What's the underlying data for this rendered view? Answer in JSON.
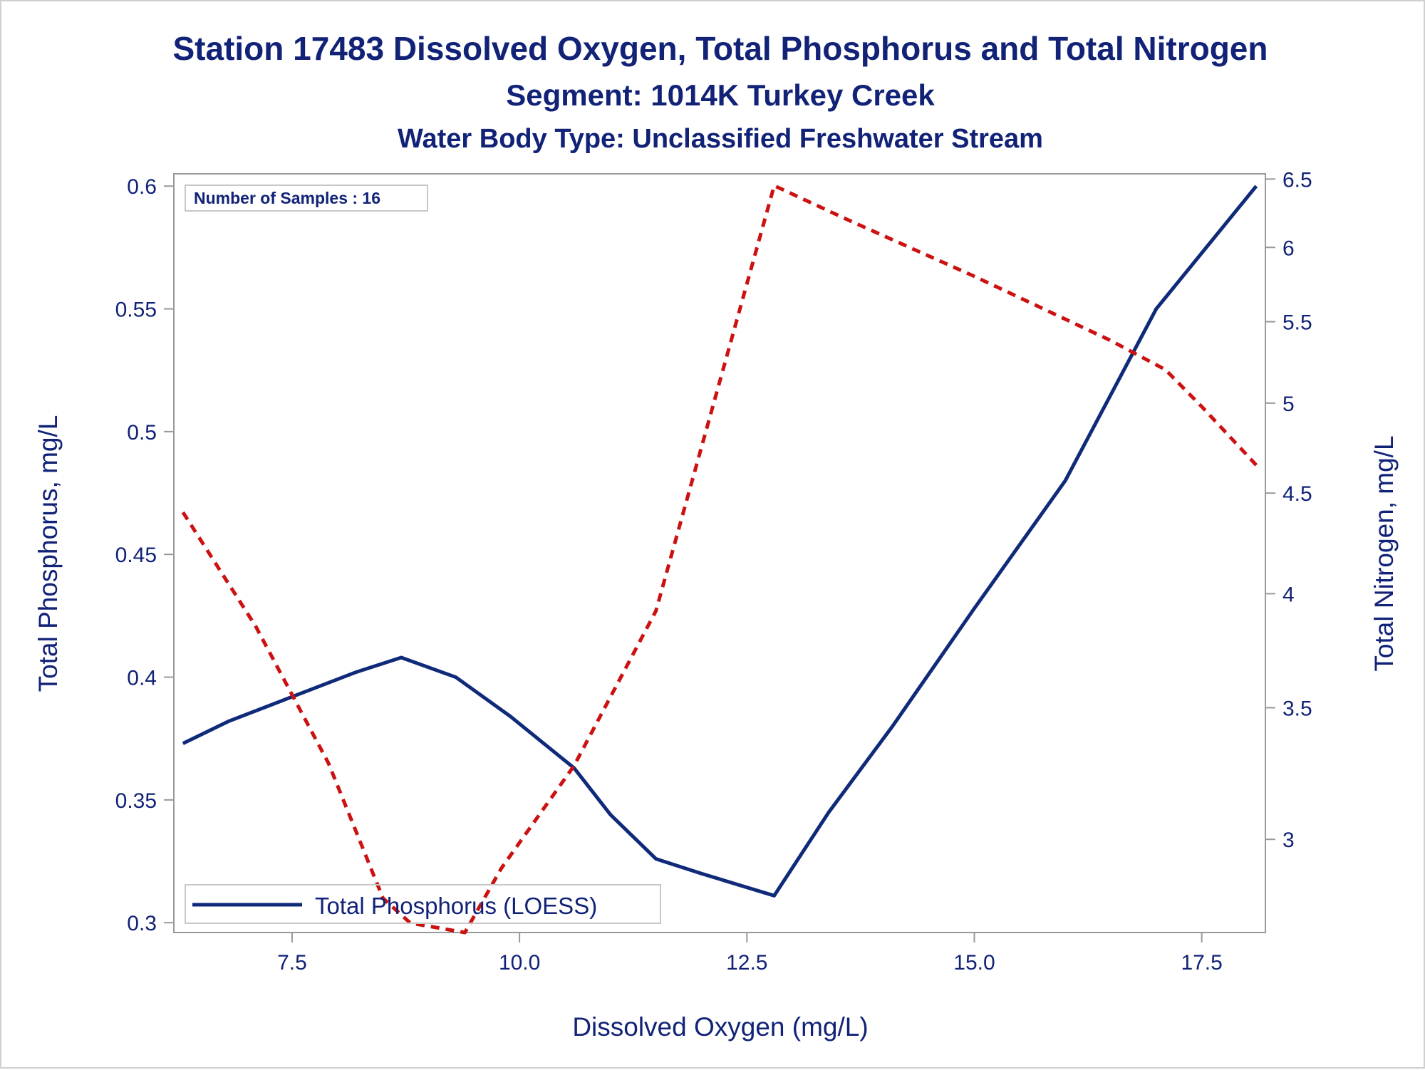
{
  "chart_data": {
    "type": "line",
    "title": "Station 17483  Dissolved Oxygen, Total Phosphorus and Total Nitrogen",
    "subtitle": "Segment: 1014K  Turkey Creek",
    "subtitle2": "Water Body Type: Unclassified Freshwater Stream",
    "xlabel": "Dissolved Oxygen (mg/L)",
    "ylabel": "Total Phosphorus, mg/L",
    "y2label": "Total Nitrogen, mg/L",
    "xlim": [
      6.2,
      18.2
    ],
    "ylim": [
      0.296,
      0.605
    ],
    "y2lim": [
      2.69,
      6.54
    ],
    "y2scale": "log",
    "xticks": [
      "7.5",
      "10.0",
      "12.5",
      "15.0",
      "17.5"
    ],
    "yticks": [
      "0.3",
      "0.35",
      "0.4",
      "0.45",
      "0.5",
      "0.55",
      "0.6"
    ],
    "y2ticks": [
      "3",
      "3.5",
      "4",
      "4.5",
      "5",
      "5.5",
      "6",
      "6.5"
    ],
    "inset_text": "Number of Samples : 16",
    "legend": {
      "position": "bottom-left",
      "label": "Total Phosphorus (LOESS)"
    },
    "series": [
      {
        "name": "Total Phosphorus (LOESS)",
        "axis": "left",
        "style": "solid",
        "color": "#102a7a",
        "x": [
          6.3,
          6.8,
          7.5,
          8.2,
          8.7,
          9.3,
          9.9,
          10.6,
          11.0,
          11.5,
          12.0,
          12.8,
          13.4,
          14.1,
          15.0,
          16.0,
          17.0,
          18.1
        ],
        "y": [
          0.373,
          0.382,
          0.392,
          0.402,
          0.408,
          0.4,
          0.384,
          0.363,
          0.344,
          0.326,
          0.32,
          0.311,
          0.345,
          0.38,
          0.428,
          0.48,
          0.55,
          0.6
        ]
      },
      {
        "name": "",
        "axis": "right",
        "style": "dashed",
        "color": "#cc1111",
        "x": [
          6.3,
          7.1,
          7.9,
          8.5,
          8.8,
          9.4,
          9.8,
          10.6,
          11.5,
          12.8,
          13.6,
          15.0,
          16.5,
          17.1,
          17.5,
          18.1
        ],
        "y": [
          4.4,
          3.85,
          3.28,
          2.8,
          2.72,
          2.69,
          2.9,
          3.27,
          3.92,
          6.45,
          6.2,
          5.8,
          5.38,
          5.2,
          4.98,
          4.65
        ]
      }
    ]
  }
}
